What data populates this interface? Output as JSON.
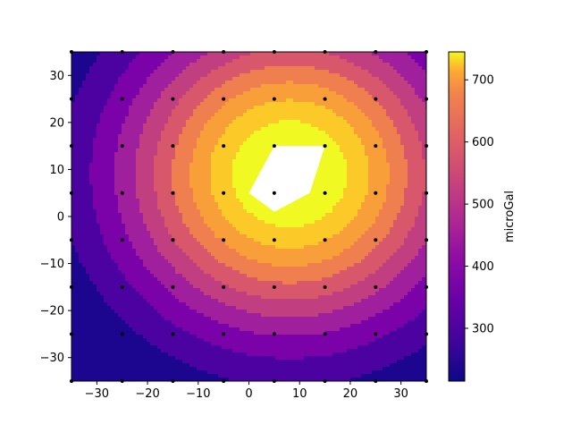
{
  "chart_data": {
    "type": "heatmap",
    "subtype": "filled-contour",
    "title": "",
    "xlabel": "",
    "ylabel": "",
    "xlim": [
      -35,
      35
    ],
    "ylim": [
      -35,
      35
    ],
    "x_ticks": [
      "−30",
      "−20",
      "−10",
      "0",
      "10",
      "20",
      "30"
    ],
    "y_ticks": [
      "−30",
      "−20",
      "−10",
      "0",
      "10",
      "20",
      "30"
    ],
    "grid": false,
    "colormap": "plasma",
    "colorbar": {
      "label": "microGal",
      "range": [
        215,
        745
      ],
      "ticks": [
        "300",
        "400",
        "500",
        "600",
        "700"
      ],
      "orientation": "vertical",
      "position": "right"
    },
    "contour_levels": [
      250,
      300,
      350,
      400,
      450,
      500,
      550,
      600,
      650,
      700,
      750
    ],
    "level_colors": [
      "#1d068f",
      "#4c02a1",
      "#7a02a8",
      "#a01f9c",
      "#c13f80",
      "#d8576b",
      "#f07f4f",
      "#f99f3a",
      "#fbca28",
      "#f0f921"
    ],
    "peak_color": "#ffffff",
    "sample_grid": {
      "x": [
        -35,
        -25,
        -15,
        -5,
        5,
        15,
        25,
        35
      ],
      "y": [
        -35,
        -25,
        -15,
        -5,
        5,
        15,
        25,
        35
      ]
    },
    "peak_region": [
      [
        5,
        1
      ],
      [
        0,
        5
      ],
      [
        5,
        15
      ],
      [
        15,
        15
      ],
      [
        12,
        5
      ]
    ]
  }
}
